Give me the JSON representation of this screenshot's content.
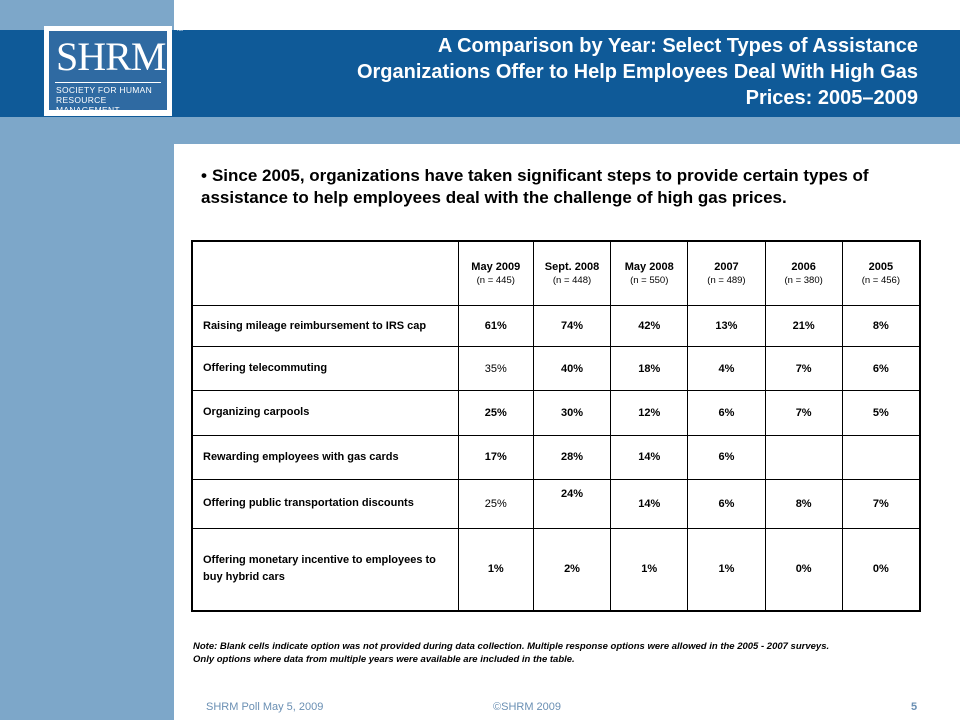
{
  "logo": {
    "word": "SHRM",
    "tm": "™",
    "subtitle_line1": "SOCIETY FOR HUMAN",
    "subtitle_line2": "RESOURCE MANAGEMENT"
  },
  "title": {
    "line1": "A Comparison by Year: Select Types of Assistance",
    "line2": "Organizations Offer to Help Employees Deal With High Gas",
    "line3": "Prices: 2005–2009"
  },
  "bullet": "Since 2005, organizations have taken significant steps to provide certain types of assistance to help employees deal with the challenge of high gas prices.",
  "table": {
    "columns": [
      {
        "label": "May 2009",
        "n": "(n = 445)"
      },
      {
        "label": "Sept. 2008",
        "n": "(n = 448)"
      },
      {
        "label": "May 2008",
        "n": "(n = 550)"
      },
      {
        "label": "2007",
        "n": "(n = 489)"
      },
      {
        "label": "2006",
        "n": "(n = 380)"
      },
      {
        "label": "2005",
        "n": "(n = 456)"
      }
    ],
    "rows": [
      {
        "label": "Raising mileage reimbursement to IRS cap",
        "values": [
          "61%",
          "74%",
          "42%",
          "13%",
          "21%",
          "8%"
        ]
      },
      {
        "label": "Offering telecommuting",
        "values": [
          "35%",
          "40%",
          "18%",
          "4%",
          "7%",
          "6%"
        ]
      },
      {
        "label": "Organizing carpools",
        "values": [
          "25%",
          "30%",
          "12%",
          "6%",
          "7%",
          "5%"
        ]
      },
      {
        "label": "Rewarding employees with gas cards",
        "values": [
          "17%",
          "28%",
          "14%",
          "6%",
          "",
          ""
        ]
      },
      {
        "label": "Offering public transportation discounts",
        "values": [
          "25%",
          "24%",
          "14%",
          "6%",
          "8%",
          "7%"
        ]
      },
      {
        "label": "Offering monetary incentive to employees to buy hybrid cars",
        "values": [
          "1%",
          "2%",
          "1%",
          "1%",
          "0%",
          "0%"
        ]
      }
    ]
  },
  "note": {
    "line1": "Note: Blank cells indicate option was not provided during data collection. Multiple response options were allowed in the 2005 - 2007 surveys.",
    "line2": "Only options where data from multiple years were available are included in the table."
  },
  "footer": {
    "left": "SHRM Poll May 5, 2009",
    "center": "©SHRM 2009",
    "page": "5"
  }
}
